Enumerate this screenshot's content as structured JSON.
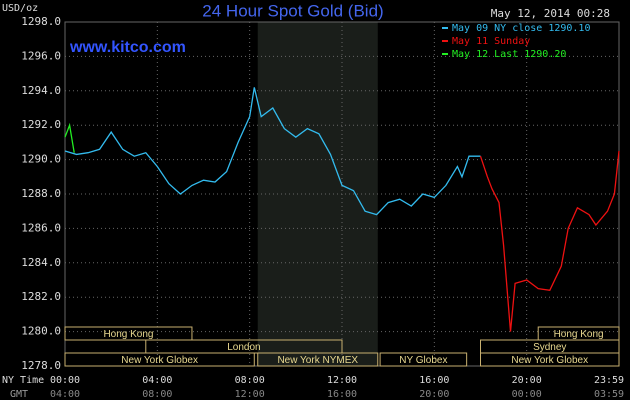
{
  "chart_data": {
    "type": "line",
    "title": "24 Hour Spot Gold (Bid)",
    "subtitle": "www.kitco.com",
    "y_label": "USD/oz",
    "timestamp": "May 12, 2014 00:28",
    "x_label": "NY Time",
    "x2_label": "GMT",
    "xlim": [
      0,
      24
    ],
    "xticks": [
      {
        "value": 0,
        "label": "00:00"
      },
      {
        "value": 4,
        "label": "04:00"
      },
      {
        "value": 8,
        "label": "08:00"
      },
      {
        "value": 12,
        "label": "12:00"
      },
      {
        "value": 16,
        "label": "16:00"
      },
      {
        "value": 20,
        "label": "20:00"
      },
      {
        "value": 24,
        "label": "23:59"
      }
    ],
    "gmt_labels": [
      "04:00",
      "08:00",
      "12:00",
      "16:00",
      "20:00",
      "00:00",
      "03:59"
    ],
    "ylim": [
      1278,
      1298
    ],
    "yticks": [
      {
        "value": 1278,
        "label": "1278.0"
      },
      {
        "value": 1280,
        "label": "1280.0"
      },
      {
        "value": 1282,
        "label": "1282.0"
      },
      {
        "value": 1284,
        "label": "1284.0"
      },
      {
        "value": 1286,
        "label": "1286.0"
      },
      {
        "value": 1288,
        "label": "1288.0"
      },
      {
        "value": 1290,
        "label": "1290.0"
      },
      {
        "value": 1292,
        "label": "1292.0"
      },
      {
        "value": 1294,
        "label": "1294.0"
      },
      {
        "value": 1296,
        "label": "1296.0"
      },
      {
        "value": 1298,
        "label": "1298.0"
      }
    ],
    "grid": true,
    "series": [
      {
        "name": "May 09 NY close 1290.10",
        "color": "#33bbee",
        "x": [
          0,
          0.5,
          1,
          1.5,
          2,
          2.5,
          3,
          3.5,
          4,
          4.5,
          5,
          5.5,
          6,
          6.5,
          7,
          7.5,
          8,
          8.2,
          8.5,
          9,
          9.5,
          10,
          10.5,
          11,
          11.5,
          12,
          12.5,
          13,
          13.5,
          14,
          14.5,
          15,
          15.5,
          16,
          16.5,
          17,
          17.2,
          17.5,
          18
        ],
        "values": [
          1290.5,
          1290.3,
          1290.4,
          1290.6,
          1291.6,
          1290.6,
          1290.2,
          1290.4,
          1289.6,
          1288.6,
          1288.0,
          1288.5,
          1288.8,
          1288.7,
          1289.3,
          1291.0,
          1292.5,
          1294.2,
          1292.5,
          1293.0,
          1291.8,
          1291.3,
          1291.8,
          1291.5,
          1290.3,
          1288.5,
          1288.2,
          1287.0,
          1286.8,
          1287.5,
          1287.7,
          1287.3,
          1288.0,
          1287.8,
          1288.5,
          1289.6,
          1289.0,
          1290.2,
          1290.2
        ]
      },
      {
        "name": "May 11 Sunday",
        "color": "#ee1111",
        "x": [
          18,
          18.3,
          18.5,
          18.8,
          19.0,
          19.3,
          19.5,
          20,
          20.5,
          21,
          21.5,
          21.8,
          22.2,
          22.7,
          23,
          23.5,
          23.8,
          24
        ],
        "values": [
          1290.2,
          1289.0,
          1288.3,
          1287.5,
          1285.0,
          1280.0,
          1282.8,
          1283.0,
          1282.5,
          1282.4,
          1283.8,
          1286.0,
          1287.2,
          1286.8,
          1286.2,
          1287.0,
          1288.0,
          1290.5
        ]
      },
      {
        "name": "May 12 Last 1290.20",
        "color": "#22ee22",
        "x": [
          0,
          0.2,
          0.4
        ],
        "values": [
          1291.3,
          1292.0,
          1290.4
        ]
      }
    ],
    "sessions": [
      {
        "label": "Hong Kong",
        "start": 0,
        "end": 5.5,
        "row": 0
      },
      {
        "label": "Hong Kong",
        "start": 20.5,
        "end": 24,
        "row": 0
      },
      {
        "label": "London",
        "start": 3.5,
        "end": 12,
        "row": 1
      },
      {
        "label": "Sydney",
        "start": 18,
        "end": 24,
        "row": 1
      },
      {
        "label": "New York Globex",
        "start": 0,
        "end": 8.2,
        "row": 2
      },
      {
        "label": "New York NYMEX",
        "start": 8.35,
        "end": 13.55,
        "row": 2
      },
      {
        "label": "NY Globex",
        "start": 13.65,
        "end": 17.4,
        "row": 2
      },
      {
        "label": "New York Globex",
        "start": 18,
        "end": 24,
        "row": 2
      }
    ]
  }
}
